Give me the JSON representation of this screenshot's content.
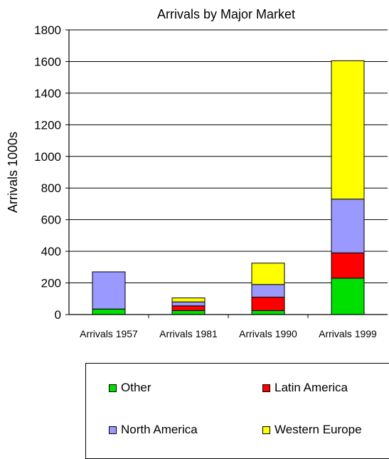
{
  "chart_data": {
    "type": "bar",
    "stacked": true,
    "title": "Arrivals by Major Market",
    "xlabel": "",
    "ylabel": "Arrivals 1000s",
    "ylim": [
      0,
      1800
    ],
    "yticks": [
      0,
      200,
      400,
      600,
      800,
      1000,
      1200,
      1400,
      1600,
      1800
    ],
    "grid": true,
    "legend_position": "bottom",
    "categories": [
      "Arrivals 1957",
      "Arrivals 1981",
      "Arrivals 1990",
      "Arrivals 1999"
    ],
    "series": [
      {
        "name": "Other",
        "color": "#00e000",
        "values": [
          35,
          25,
          25,
          230
        ]
      },
      {
        "name": "Latin America",
        "color": "#ff0000",
        "values": [
          0,
          30,
          85,
          160
        ]
      },
      {
        "name": "North America",
        "color": "#9999ff",
        "values": [
          235,
          25,
          80,
          340
        ]
      },
      {
        "name": "Western Europe",
        "color": "#ffff00",
        "values": [
          0,
          25,
          135,
          875
        ]
      }
    ]
  },
  "legend": {
    "items": [
      {
        "label": "Other",
        "color": "#00e000"
      },
      {
        "label": "Latin America",
        "color": "#ff0000"
      },
      {
        "label": "North America",
        "color": "#9999ff"
      },
      {
        "label": "Western Europe",
        "color": "#ffff00"
      }
    ]
  }
}
